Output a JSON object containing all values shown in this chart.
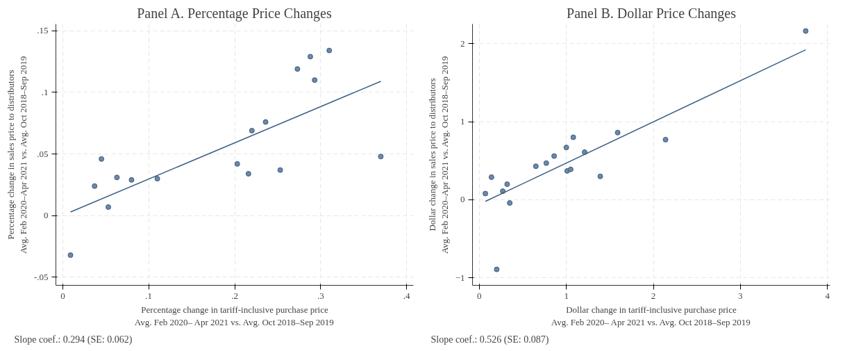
{
  "chart_data": [
    {
      "type": "scatter",
      "title": "Panel A. Percentage Price Changes",
      "xlabel": "Percentage change in tariff-inclusive purchase price\nAvg. Feb 2020– Apr 2021 vs. Avg. Oct 2018–Sep 2019",
      "ylabel": "Percentage change in sales price to distributors\nAvg. Feb 2020–Apr 2021 vs. Avg. Oct 2018–Sep 2019",
      "xlim": [
        -0.008,
        0.408
      ],
      "ylim": [
        -0.0565,
        0.1555
      ],
      "xticks": [
        {
          "value": 0,
          "label": "0"
        },
        {
          "value": 0.1,
          "label": ".1"
        },
        {
          "value": 0.2,
          "label": ".2"
        },
        {
          "value": 0.3,
          "label": ".3"
        },
        {
          "value": 0.4,
          "label": ".4"
        }
      ],
      "yticks": [
        {
          "value": -0.05,
          "label": "-.05"
        },
        {
          "value": 0,
          "label": "0"
        },
        {
          "value": 0.05,
          "label": ".05"
        },
        {
          "value": 0.1,
          "label": ".1"
        },
        {
          "value": 0.15,
          "label": ".15"
        }
      ],
      "grid": true,
      "series": [
        {
          "marker": "circle",
          "color": "#6b88a8",
          "x": [
            0.009,
            0.037,
            0.045,
            0.053,
            0.063,
            0.08,
            0.11,
            0.203,
            0.216,
            0.22,
            0.236,
            0.253,
            0.273,
            0.288,
            0.293,
            0.31,
            0.37
          ],
          "values": [
            -0.032,
            0.024,
            0.046,
            0.007,
            0.031,
            0.029,
            0.03,
            0.042,
            0.034,
            0.069,
            0.076,
            0.037,
            0.119,
            0.129,
            0.11,
            0.134,
            0.048
          ]
        },
        {
          "type": "line",
          "line_style": "solid",
          "color": "#3d6185",
          "x": [
            0.009,
            0.37
          ],
          "values": [
            0.003,
            0.109
          ]
        }
      ],
      "annotations": [
        "Slope coef.: 0.294  (SE: 0.062)"
      ]
    },
    {
      "type": "scatter",
      "title": "Panel B. Dollar Price Changes",
      "xlabel": "Dollar change in tariff-inclusive purchase price\nAvg. Feb 2020– Apr 2021 vs. Avg. Oct 2018–Sep 2019",
      "ylabel": "Dollar change in sales price to distributors\nAvg. Feb 2020–Apr 2021 vs. Avg. Oct 2018–Sep 2019",
      "xlim": [
        -0.078,
        4.03
      ],
      "ylim": [
        -1.094,
        2.25
      ],
      "xticks": [
        0,
        1,
        2,
        3,
        4
      ],
      "yticks": [
        -1,
        0,
        1,
        2
      ],
      "grid": true,
      "series": [
        {
          "marker": "circle",
          "color": "#6b88a8",
          "x": [
            0.07,
            0.14,
            0.2,
            0.27,
            0.32,
            0.35,
            0.65,
            0.77,
            0.86,
            1.0,
            1.01,
            1.05,
            1.08,
            1.21,
            1.39,
            1.59,
            2.14,
            3.75
          ],
          "values": [
            0.08,
            0.29,
            -0.89,
            0.11,
            0.2,
            -0.04,
            0.43,
            0.47,
            0.56,
            0.67,
            0.37,
            0.39,
            0.8,
            0.61,
            0.3,
            0.86,
            0.77,
            2.16
          ]
        },
        {
          "type": "line",
          "line_style": "solid",
          "color": "#3d6185",
          "x": [
            0.07,
            3.75
          ],
          "values": [
            -0.02,
            1.92
          ]
        }
      ],
      "annotations": [
        "Slope coef.: 0.526  (SE: 0.087)"
      ]
    }
  ]
}
